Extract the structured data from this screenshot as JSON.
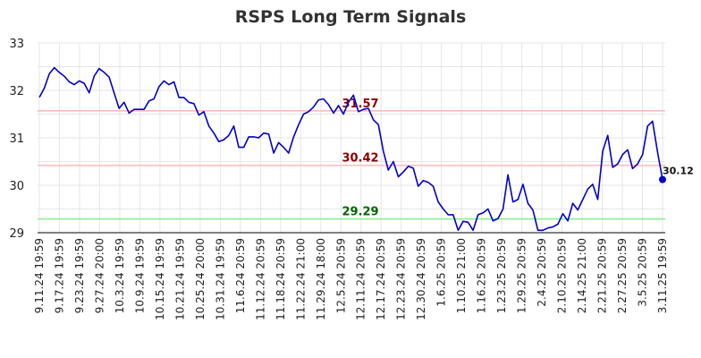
{
  "chart_data": {
    "type": "line",
    "title": "RSPS Long Term Signals",
    "xlabel": "",
    "ylabel": "",
    "ylim": [
      29,
      33
    ],
    "yticks": [
      29,
      30,
      31,
      32,
      33
    ],
    "grid": true,
    "legend": "none",
    "line_color": "#0000cc",
    "x_tick_labels": [
      "9.11.24 19:59",
      "9.17.24 19:59",
      "9.23.24 19:59",
      "9.27.24 20:00",
      "10.3.24 19:59",
      "10.9.24 19:59",
      "10.15.24 19:59",
      "10.21.24 19:59",
      "10.25.24 20:00",
      "10.31.24 19:59",
      "11.6.24 20:59",
      "11.12.24 20:59",
      "11.18.24 20:59",
      "11.22.24 21:00",
      "11.29.24 18:00",
      "12.5.24 20:59",
      "12.11.24 20:59",
      "12.17.24 20:59",
      "12.23.24 20:59",
      "12.30.24 20:59",
      "1.6.25 20:59",
      "1.10.25 21:00",
      "1.16.25 20:59",
      "1.23.25 20:59",
      "1.29.25 20:59",
      "2.4.25 20:59",
      "2.10.25 20:59",
      "2.14.25 21:00",
      "2.21.25 20:59",
      "2.27.25 20:59",
      "3.5.25 20:59",
      "3.11.25 19:59"
    ],
    "reference_lines": [
      {
        "value": 31.57,
        "label": "31.57",
        "line_color": "#ffbbbb",
        "label_color": "#8b0000"
      },
      {
        "value": 30.42,
        "label": "30.42",
        "line_color": "#ffbbbb",
        "label_color": "#8b0000"
      },
      {
        "value": 29.29,
        "label": "29.29",
        "line_color": "#88ee88",
        "label_color": "#006400"
      }
    ],
    "last_value": {
      "value": 30.12,
      "label": "30.12",
      "color": "#0000cc"
    },
    "series": [
      {
        "values": [
          31.85,
          32.05,
          32.35,
          32.48,
          32.38,
          32.3,
          32.18,
          32.12,
          32.2,
          32.15,
          31.95,
          32.3,
          32.46,
          32.38,
          32.28,
          31.95,
          31.62,
          31.75,
          31.52,
          31.6,
          31.6,
          31.6,
          31.78,
          31.82,
          32.08,
          32.2,
          32.12,
          32.18,
          31.85,
          31.85,
          31.75,
          31.72,
          31.48,
          31.55,
          31.25,
          31.1,
          30.92,
          30.96,
          31.05,
          31.25,
          30.8,
          30.8,
          31.02,
          31.02,
          31.0,
          31.1,
          31.08,
          30.68,
          30.9,
          30.8,
          30.68,
          31.02,
          31.28,
          31.5,
          31.55,
          31.65,
          31.8,
          31.82,
          31.7,
          31.52,
          31.68,
          31.5,
          31.75,
          31.9,
          31.55,
          31.6,
          31.62,
          31.38,
          31.28,
          30.72,
          30.32,
          30.5,
          30.18,
          30.28,
          30.4,
          30.36,
          29.98,
          30.1,
          30.06,
          29.98,
          29.65,
          29.5,
          29.38,
          29.38,
          29.05,
          29.24,
          29.22,
          29.05,
          29.38,
          29.42,
          29.5,
          29.25,
          29.3,
          29.5,
          30.22,
          29.65,
          29.7,
          30.02,
          29.62,
          29.48,
          29.05,
          29.05,
          29.1,
          29.12,
          29.18,
          29.4,
          29.25,
          29.62,
          29.48,
          29.7,
          29.92,
          30.02,
          29.7,
          30.72,
          31.05,
          30.38,
          30.45,
          30.65,
          30.75,
          30.35,
          30.45,
          30.65,
          31.25,
          31.35,
          30.7,
          30.12
        ]
      }
    ]
  }
}
